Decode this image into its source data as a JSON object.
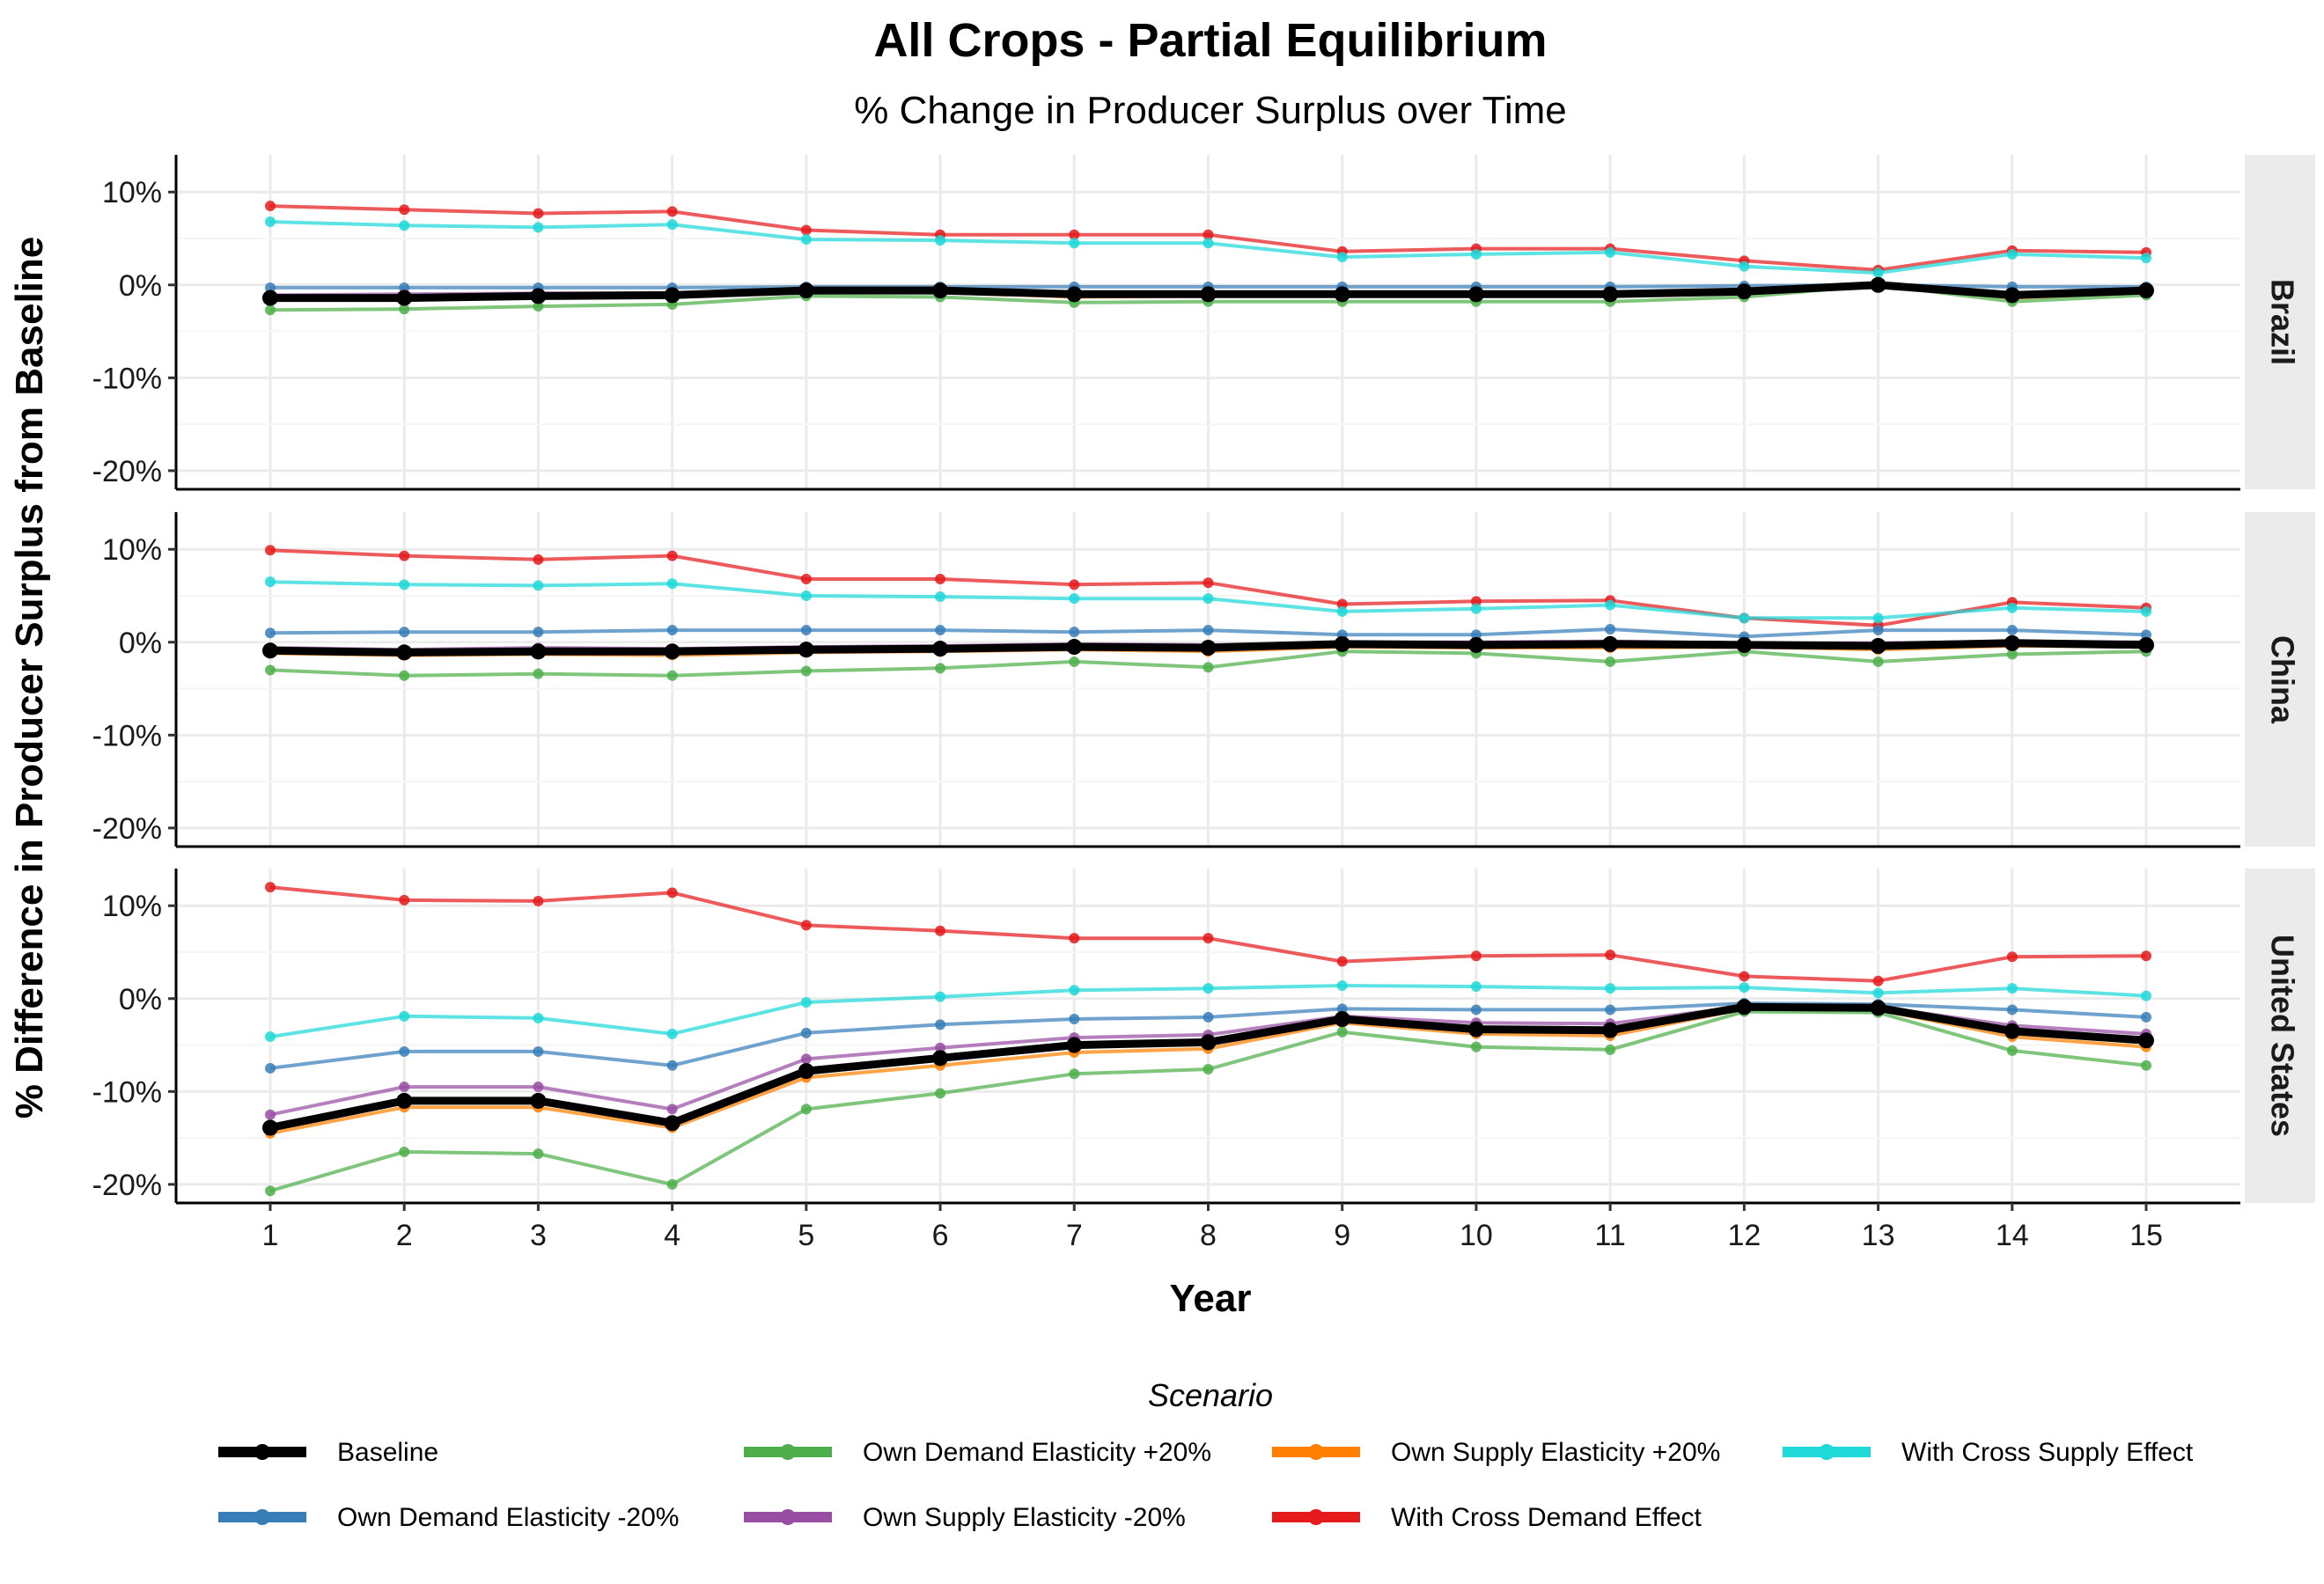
{
  "chart_data": {
    "type": "line",
    "title": "All Crops - Partial Equilibrium",
    "subtitle": "% Change in Producer Surplus over Time",
    "xlabel": "Year",
    "ylabel": "% Difference in Producer Surplus from Baseline",
    "x": [
      1,
      2,
      3,
      4,
      5,
      6,
      7,
      8,
      9,
      10,
      11,
      12,
      13,
      14,
      15
    ],
    "ylim": [
      -22,
      14
    ],
    "yticks": [
      10,
      0,
      -10,
      -20
    ],
    "ytick_labels": [
      "10%",
      "0%",
      "-10%",
      "-20%"
    ],
    "grid": true,
    "legend_title": "Scenario",
    "legend_position": "bottom",
    "series_styles": [
      {
        "name": "Baseline",
        "color": "#000000"
      },
      {
        "name": "Own Demand Elasticity -20%",
        "color": "#377EB8"
      },
      {
        "name": "Own Demand Elasticity +20%",
        "color": "#4DAF4A"
      },
      {
        "name": "Own Supply Elasticity -20%",
        "color": "#984EA3"
      },
      {
        "name": "Own Supply Elasticity +20%",
        "color": "#FF7F00"
      },
      {
        "name": "With Cross Demand Effect",
        "color": "#E41A1C"
      },
      {
        "name": "With Cross Supply Effect",
        "color": "#1FD8D8"
      }
    ],
    "legend_order": [
      "Baseline",
      "Own Demand Elasticity +20%",
      "Own Supply Elasticity +20%",
      "With Cross Supply Effect",
      "Own Demand Elasticity -20%",
      "Own Supply Elasticity -20%",
      "With Cross Demand Effect"
    ],
    "panels": [
      {
        "name": "Brazil",
        "series": [
          {
            "name": "With Cross Demand Effect",
            "values": [
              8.5,
              8.1,
              7.7,
              7.9,
              5.9,
              5.4,
              5.4,
              5.4,
              3.6,
              3.9,
              3.9,
              2.6,
              1.6,
              3.7,
              3.5
            ]
          },
          {
            "name": "With Cross Supply Effect",
            "values": [
              6.8,
              6.4,
              6.2,
              6.5,
              4.9,
              4.8,
              4.5,
              4.5,
              3.0,
              3.3,
              3.5,
              2.0,
              1.3,
              3.3,
              2.9
            ]
          },
          {
            "name": "Own Demand Elasticity -20%",
            "values": [
              -0.3,
              -0.3,
              -0.3,
              -0.3,
              -0.2,
              -0.2,
              -0.2,
              -0.2,
              -0.2,
              -0.2,
              -0.2,
              -0.1,
              0.0,
              -0.2,
              -0.2
            ]
          },
          {
            "name": "Own Supply Elasticity -20%",
            "values": [
              -1.1,
              -1.0,
              -0.9,
              -0.9,
              -0.5,
              -0.5,
              -0.8,
              -0.8,
              -0.8,
              -0.8,
              -0.8,
              -0.6,
              0.0,
              -0.9,
              -0.5
            ]
          },
          {
            "name": "Own Supply Elasticity +20%",
            "values": [
              -1.6,
              -1.6,
              -1.4,
              -1.3,
              -0.8,
              -0.8,
              -1.3,
              -1.2,
              -1.2,
              -1.2,
              -1.2,
              -0.9,
              0.0,
              -1.4,
              -0.8
            ]
          },
          {
            "name": "Own Demand Elasticity +20%",
            "values": [
              -2.7,
              -2.6,
              -2.3,
              -2.1,
              -1.2,
              -1.3,
              -1.9,
              -1.8,
              -1.8,
              -1.8,
              -1.8,
              -1.3,
              0.0,
              -1.8,
              -1.1
            ]
          },
          {
            "name": "Baseline",
            "values": [
              -1.4,
              -1.4,
              -1.2,
              -1.1,
              -0.6,
              -0.6,
              -1.0,
              -1.0,
              -1.0,
              -1.0,
              -1.0,
              -0.7,
              0.0,
              -1.1,
              -0.6
            ]
          }
        ]
      },
      {
        "name": "China",
        "series": [
          {
            "name": "With Cross Demand Effect",
            "values": [
              9.9,
              9.3,
              8.9,
              9.3,
              6.8,
              6.8,
              6.2,
              6.4,
              4.1,
              4.4,
              4.5,
              2.6,
              1.8,
              4.3,
              3.7
            ]
          },
          {
            "name": "With Cross Supply Effect",
            "values": [
              6.5,
              6.2,
              6.1,
              6.3,
              5.0,
              4.9,
              4.7,
              4.7,
              3.3,
              3.6,
              4.0,
              2.6,
              2.6,
              3.7,
              3.3
            ]
          },
          {
            "name": "Own Demand Elasticity -20%",
            "values": [
              1.0,
              1.1,
              1.1,
              1.3,
              1.3,
              1.3,
              1.1,
              1.3,
              0.8,
              0.8,
              1.4,
              0.6,
              1.3,
              1.3,
              0.8
            ]
          },
          {
            "name": "Own Supply Elasticity -20%",
            "values": [
              -0.6,
              -0.8,
              -0.6,
              -0.7,
              -0.5,
              -0.4,
              -0.2,
              -0.3,
              0.0,
              0.0,
              0.1,
              -0.1,
              -0.1,
              0.1,
              0.0
            ]
          },
          {
            "name": "Own Supply Elasticity +20%",
            "values": [
              -1.2,
              -1.4,
              -1.3,
              -1.4,
              -1.1,
              -1.0,
              -0.8,
              -1.0,
              -0.5,
              -0.6,
              -0.6,
              -0.5,
              -0.8,
              -0.4,
              -0.5
            ]
          },
          {
            "name": "Own Demand Elasticity +20%",
            "values": [
              -3.0,
              -3.6,
              -3.4,
              -3.6,
              -3.1,
              -2.8,
              -2.1,
              -2.7,
              -1.0,
              -1.2,
              -2.1,
              -1.0,
              -2.1,
              -1.3,
              -1.0
            ]
          },
          {
            "name": "Baseline",
            "values": [
              -0.9,
              -1.1,
              -1.0,
              -1.0,
              -0.8,
              -0.7,
              -0.5,
              -0.6,
              -0.2,
              -0.3,
              -0.2,
              -0.3,
              -0.4,
              -0.1,
              -0.3
            ]
          }
        ]
      },
      {
        "name": "United States",
        "series": [
          {
            "name": "With Cross Demand Effect",
            "values": [
              12.0,
              10.6,
              10.5,
              11.4,
              7.9,
              7.3,
              6.5,
              6.5,
              4.0,
              4.6,
              4.7,
              2.4,
              1.9,
              4.5,
              4.6
            ]
          },
          {
            "name": "With Cross Supply Effect",
            "values": [
              -4.1,
              -1.9,
              -2.1,
              -3.8,
              -0.4,
              0.2,
              0.9,
              1.1,
              1.4,
              1.3,
              1.1,
              1.2,
              0.6,
              1.1,
              0.3
            ]
          },
          {
            "name": "Own Demand Elasticity -20%",
            "values": [
              -7.5,
              -5.7,
              -5.7,
              -7.2,
              -3.7,
              -2.8,
              -2.2,
              -2.0,
              -1.1,
              -1.2,
              -1.2,
              -0.5,
              -0.6,
              -1.2,
              -2.0
            ]
          },
          {
            "name": "Own Supply Elasticity -20%",
            "values": [
              -12.5,
              -9.5,
              -9.5,
              -11.9,
              -6.5,
              -5.3,
              -4.2,
              -3.9,
              -1.9,
              -2.6,
              -2.7,
              -0.8,
              -0.9,
              -2.9,
              -3.8
            ]
          },
          {
            "name": "Own Supply Elasticity +20%",
            "values": [
              -14.5,
              -11.7,
              -11.7,
              -13.9,
              -8.5,
              -7.2,
              -5.8,
              -5.4,
              -2.6,
              -3.8,
              -4.0,
              -1.1,
              -1.2,
              -4.1,
              -5.2
            ]
          },
          {
            "name": "Own Demand Elasticity +20%",
            "values": [
              -20.7,
              -16.5,
              -16.7,
              -20.0,
              -11.9,
              -10.2,
              -8.1,
              -7.6,
              -3.6,
              -5.2,
              -5.5,
              -1.4,
              -1.5,
              -5.6,
              -7.2
            ]
          },
          {
            "name": "Baseline",
            "values": [
              -13.9,
              -11.0,
              -11.0,
              -13.4,
              -7.8,
              -6.4,
              -5.0,
              -4.7,
              -2.2,
              -3.3,
              -3.4,
              -0.9,
              -1.0,
              -3.5,
              -4.5
            ]
          }
        ]
      }
    ]
  }
}
